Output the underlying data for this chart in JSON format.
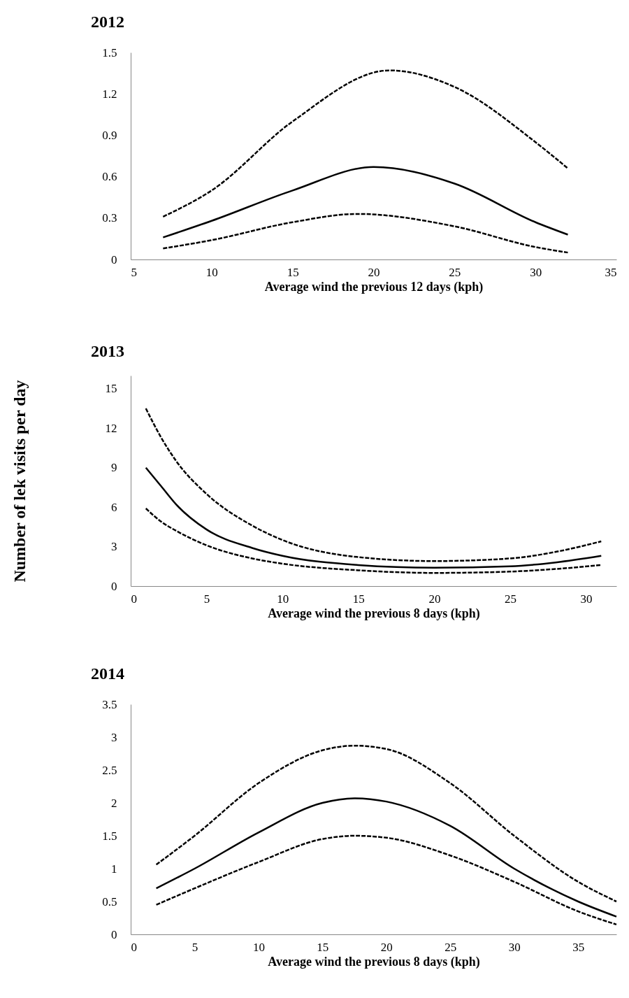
{
  "chart_data": [
    {
      "type": "line",
      "title": "2012",
      "xlabel": "Average wind the previous 12 days (kph)",
      "xlim": [
        5,
        35
      ],
      "xticks": [
        5,
        10,
        15,
        20,
        25,
        30,
        35
      ],
      "ylim": [
        0,
        1.5
      ],
      "yticks": [
        0,
        0.3,
        0.6,
        0.9,
        1.2,
        1.5
      ],
      "grid": false,
      "marker": "none",
      "series": [
        {
          "color": "#000000",
          "line_style": "dashed",
          "x": [
            7,
            10,
            15,
            21,
            25,
            30,
            32
          ],
          "values": [
            0.31,
            0.5,
            1.0,
            1.37,
            1.25,
            0.85,
            0.66
          ]
        },
        {
          "color": "#000000",
          "line_style": "solid",
          "x": [
            7,
            10,
            15,
            20,
            25,
            30,
            32
          ],
          "values": [
            0.16,
            0.28,
            0.5,
            0.67,
            0.55,
            0.27,
            0.18
          ]
        },
        {
          "color": "#000000",
          "line_style": "dashed",
          "x": [
            7,
            10,
            15,
            19,
            25,
            30,
            32
          ],
          "values": [
            0.08,
            0.14,
            0.27,
            0.33,
            0.24,
            0.09,
            0.05
          ]
        }
      ]
    },
    {
      "type": "line",
      "title": "2013",
      "xlabel": "Average wind the previous 8 days (kph)",
      "ylabel": "Number of lek visits per day",
      "xlim": [
        0,
        32
      ],
      "xticks": [
        0,
        5,
        10,
        15,
        20,
        25,
        30
      ],
      "ylim": [
        0,
        16
      ],
      "yticks": [
        0,
        3,
        6,
        9,
        12,
        15
      ],
      "grid": false,
      "marker": "none",
      "series": [
        {
          "color": "#000000",
          "line_style": "dashed",
          "x": [
            1,
            2,
            3,
            5,
            8,
            10,
            15,
            20,
            25,
            28,
            31
          ],
          "values": [
            13.5,
            11.3,
            9.5,
            7,
            4.6,
            3.5,
            2.2,
            1.9,
            2.1,
            2.6,
            3.4
          ]
        },
        {
          "color": "#000000",
          "line_style": "solid",
          "x": [
            1,
            2,
            3,
            5,
            8,
            10,
            15,
            20,
            25,
            28,
            31
          ],
          "values": [
            9,
            7.6,
            6.2,
            4.3,
            2.9,
            2.3,
            1.6,
            1.4,
            1.5,
            1.8,
            2.3
          ]
        },
        {
          "color": "#000000",
          "line_style": "dashed",
          "x": [
            1,
            2,
            3,
            5,
            8,
            10,
            15,
            20,
            25,
            28,
            31
          ],
          "values": [
            5.9,
            4.9,
            4.2,
            3.1,
            2.1,
            1.7,
            1.2,
            1.0,
            1.1,
            1.3,
            1.6
          ]
        }
      ]
    },
    {
      "type": "line",
      "title": "2014",
      "xlabel": "Average wind the previous 8 days (kph)",
      "xlim": [
        0,
        38
      ],
      "xticks": [
        0,
        5,
        10,
        15,
        20,
        25,
        30,
        35
      ],
      "ylim": [
        0,
        3.5
      ],
      "yticks": [
        0,
        0.5,
        1,
        1.5,
        2,
        2.5,
        3,
        3.5
      ],
      "grid": false,
      "marker": "none",
      "series": [
        {
          "color": "#000000",
          "line_style": "dashed",
          "x": [
            2,
            5,
            10,
            15,
            17.5,
            20,
            25,
            30,
            35,
            38
          ],
          "values": [
            1.06,
            1.5,
            2.3,
            2.8,
            2.87,
            2.82,
            2.3,
            1.5,
            0.8,
            0.5
          ]
        },
        {
          "color": "#000000",
          "line_style": "solid",
          "x": [
            2,
            5,
            10,
            15,
            17.5,
            20,
            25,
            30,
            35,
            38
          ],
          "values": [
            0.7,
            1.0,
            1.55,
            2.0,
            2.07,
            2.02,
            1.65,
            1.0,
            0.5,
            0.27
          ]
        },
        {
          "color": "#000000",
          "line_style": "dashed",
          "x": [
            2,
            5,
            10,
            15,
            17.5,
            20,
            25,
            30,
            35,
            38
          ],
          "values": [
            0.45,
            0.7,
            1.1,
            1.45,
            1.5,
            1.47,
            1.2,
            0.8,
            0.35,
            0.15
          ]
        }
      ]
    }
  ]
}
